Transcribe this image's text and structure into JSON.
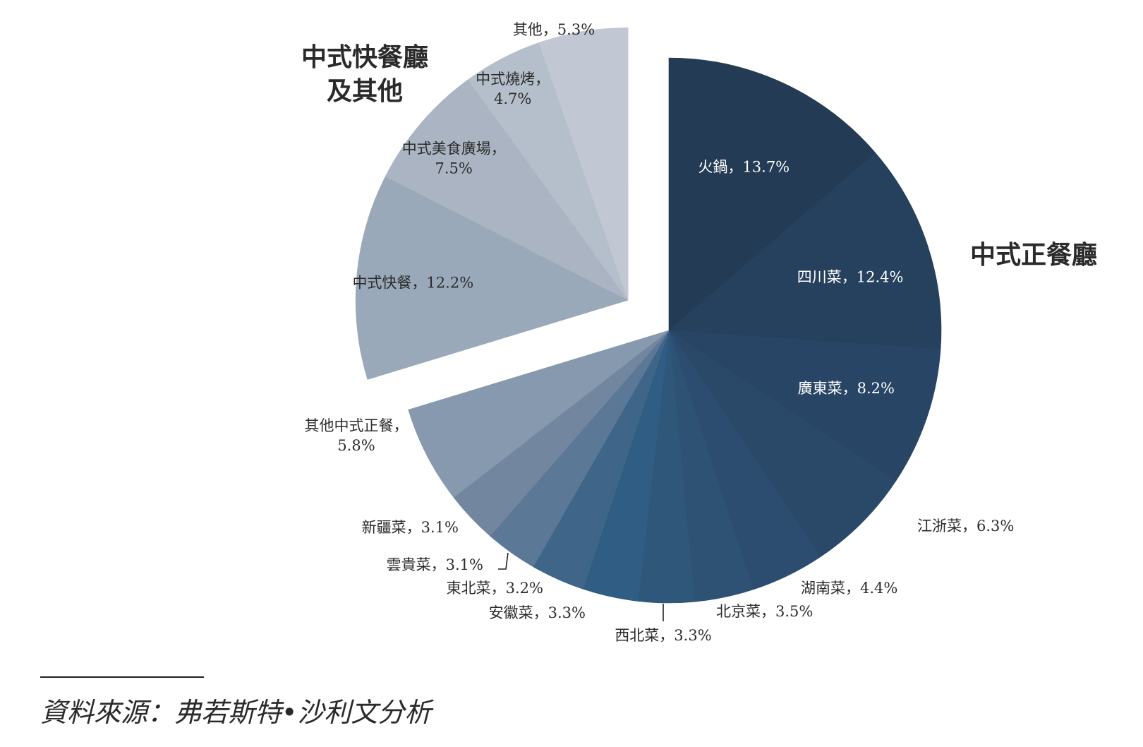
{
  "chart_data": {
    "type": "pie",
    "groups": [
      {
        "id": "full_service",
        "name": "中式正餐廳"
      },
      {
        "id": "quick_service",
        "name": "中式快餐廳及其他"
      }
    ],
    "group_title_lines": {
      "full_service": [
        "中式正餐廳"
      ],
      "quick_service": [
        "中式快餐廳",
        "及其他"
      ]
    },
    "slices": [
      {
        "label": "火鍋，13.7%",
        "value": 13.7,
        "group": "full_service",
        "color": "#233b54"
      },
      {
        "label": "四川菜，12.4%",
        "value": 12.4,
        "group": "full_service",
        "color": "#25415e"
      },
      {
        "label": "廣東菜，8.2%",
        "value": 8.2,
        "group": "full_service",
        "color": "#284566"
      },
      {
        "label": "江浙菜，6.3%",
        "value": 6.3,
        "group": "full_service",
        "color": "#2a4868"
      },
      {
        "label": "湖南菜，4.4%",
        "value": 4.4,
        "group": "full_service",
        "color": "#2c4d6f"
      },
      {
        "label": "北京菜，3.5%",
        "value": 3.5,
        "group": "full_service",
        "color": "#2e5274"
      },
      {
        "label": "西北菜，3.3%",
        "value": 3.3,
        "group": "full_service",
        "color": "#2f577a"
      },
      {
        "label": "安徽菜，3.3%",
        "value": 3.3,
        "group": "full_service",
        "color": "#305d84"
      },
      {
        "label": "東北菜，3.2%",
        "value": 3.2,
        "group": "full_service",
        "color": "#3f6689"
      },
      {
        "label": "雲貴菜，3.1%",
        "value": 3.1,
        "group": "full_service",
        "color": "#5b7896"
      },
      {
        "label": "新疆菜，3.1%",
        "value": 3.1,
        "group": "full_service",
        "color": "#72879f"
      },
      {
        "label": "其他中式正餐，5.8%",
        "value": 5.8,
        "group": "full_service",
        "color": "#8799ae"
      },
      {
        "label": "中式快餐，12.2%",
        "value": 12.2,
        "group": "quick_service",
        "color": "#99a9ba"
      },
      {
        "label": "中式美食廣場，7.5%",
        "value": 7.5,
        "group": "quick_service",
        "color": "#aab4c2"
      },
      {
        "label": "中式燒烤，4.7%",
        "value": 4.7,
        "group": "quick_service",
        "color": "#b5bfcb"
      },
      {
        "label": "其他，5.3%",
        "value": 5.3,
        "group": "quick_service",
        "color": "#c2c8d3"
      }
    ]
  },
  "source": "資料來源：弗若斯特•沙利文分析"
}
